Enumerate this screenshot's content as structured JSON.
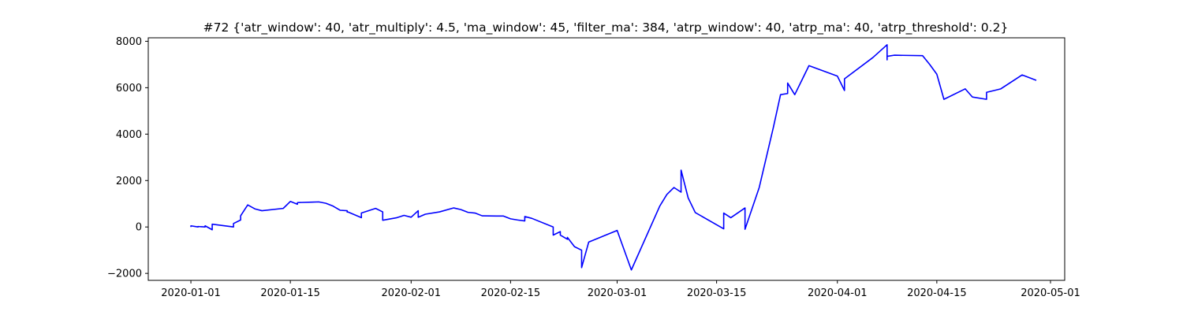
{
  "chart_data": {
    "type": "line",
    "title": "#72 {'atr_window': 40, 'atr_multiply': 4.5, 'ma_window': 45, 'filter_ma': 384, 'atrp_window': 40, 'atrp_ma': 40, 'atrp_threshold': 0.2}",
    "xlabel": "",
    "ylabel": "",
    "xlim": [
      "2019-12-26",
      "2020-05-03"
    ],
    "ylim": [
      -2300,
      8150
    ],
    "x_ticks": [
      "2020-01-01",
      "2020-01-15",
      "2020-02-01",
      "2020-02-15",
      "2020-03-01",
      "2020-03-15",
      "2020-04-01",
      "2020-04-15",
      "2020-05-01"
    ],
    "y_ticks": [
      -2000,
      0,
      2000,
      4000,
      6000,
      8000
    ],
    "grid": false,
    "legend": "none",
    "series": [
      {
        "color": "#0000ff",
        "points": [
          [
            "2020-01-01",
            0
          ],
          [
            "2020-01-01",
            50
          ],
          [
            "2020-01-02",
            0
          ],
          [
            "2020-01-02",
            20
          ],
          [
            "2020-01-03",
            0
          ],
          [
            "2020-01-03",
            50
          ],
          [
            "2020-01-04",
            -120
          ],
          [
            "2020-01-04",
            120
          ],
          [
            "2020-01-07",
            0
          ],
          [
            "2020-01-07",
            150
          ],
          [
            "2020-01-08",
            300
          ],
          [
            "2020-01-08",
            480
          ],
          [
            "2020-01-09",
            950
          ],
          [
            "2020-01-10",
            780
          ],
          [
            "2020-01-11",
            700
          ],
          [
            "2020-01-14",
            800
          ],
          [
            "2020-01-15",
            1100
          ],
          [
            "2020-01-16",
            980
          ],
          [
            "2020-01-16",
            1050
          ],
          [
            "2020-01-18",
            1070
          ],
          [
            "2020-01-19",
            1080
          ],
          [
            "2020-01-20",
            1020
          ],
          [
            "2020-01-21",
            900
          ],
          [
            "2020-01-22",
            720
          ],
          [
            "2020-01-23",
            700
          ],
          [
            "2020-01-23",
            640
          ],
          [
            "2020-01-23",
            660
          ],
          [
            "2020-01-25",
            400
          ],
          [
            "2020-01-25",
            600
          ],
          [
            "2020-01-27",
            800
          ],
          [
            "2020-01-28",
            650
          ],
          [
            "2020-01-28",
            290
          ],
          [
            "2020-01-30",
            400
          ],
          [
            "2020-01-31",
            500
          ],
          [
            "2020-02-01",
            420
          ],
          [
            "2020-02-02",
            700
          ],
          [
            "2020-02-02",
            420
          ],
          [
            "2020-02-03",
            550
          ],
          [
            "2020-02-05",
            650
          ],
          [
            "2020-02-07",
            820
          ],
          [
            "2020-02-08",
            750
          ],
          [
            "2020-02-09",
            630
          ],
          [
            "2020-02-10",
            600
          ],
          [
            "2020-02-11",
            480
          ],
          [
            "2020-02-13",
            470
          ],
          [
            "2020-02-14",
            470
          ],
          [
            "2020-02-15",
            350
          ],
          [
            "2020-02-16",
            300
          ],
          [
            "2020-02-17",
            260
          ],
          [
            "2020-02-17",
            450
          ],
          [
            "2020-02-18",
            370
          ],
          [
            "2020-02-21",
            0
          ],
          [
            "2020-02-21",
            -350
          ],
          [
            "2020-02-22",
            -200
          ],
          [
            "2020-02-22",
            -350
          ],
          [
            "2020-02-23",
            -530
          ],
          [
            "2020-02-23",
            -450
          ],
          [
            "2020-02-24",
            -850
          ],
          [
            "2020-02-25",
            -1000
          ],
          [
            "2020-02-25",
            -1750
          ],
          [
            "2020-02-26",
            -650
          ],
          [
            "2020-03-01",
            -150
          ],
          [
            "2020-03-03",
            -1850
          ],
          [
            "2020-03-07",
            900
          ],
          [
            "2020-03-08",
            1400
          ],
          [
            "2020-03-09",
            1700
          ],
          [
            "2020-03-10",
            1500
          ],
          [
            "2020-03-10",
            2450
          ],
          [
            "2020-03-11",
            1250
          ],
          [
            "2020-03-12",
            620
          ],
          [
            "2020-03-16",
            -80
          ],
          [
            "2020-03-16",
            600
          ],
          [
            "2020-03-17",
            400
          ],
          [
            "2020-03-19",
            820
          ],
          [
            "2020-03-19",
            -100
          ],
          [
            "2020-03-21",
            1700
          ],
          [
            "2020-03-23",
            4300
          ],
          [
            "2020-03-24",
            5700
          ],
          [
            "2020-03-25",
            5750
          ],
          [
            "2020-03-25",
            6200
          ],
          [
            "2020-03-26",
            5700
          ],
          [
            "2020-03-28",
            6950
          ],
          [
            "2020-04-01",
            6500
          ],
          [
            "2020-04-02",
            5880
          ],
          [
            "2020-04-02",
            6380
          ],
          [
            "2020-04-06",
            7300
          ],
          [
            "2020-04-08",
            7850
          ],
          [
            "2020-04-08",
            7200
          ],
          [
            "2020-04-08",
            7350
          ],
          [
            "2020-04-09",
            7400
          ],
          [
            "2020-04-13",
            7380
          ],
          [
            "2020-04-14",
            7000
          ],
          [
            "2020-04-15",
            6580
          ],
          [
            "2020-04-16",
            5500
          ],
          [
            "2020-04-19",
            5950
          ],
          [
            "2020-04-20",
            5600
          ],
          [
            "2020-04-22",
            5500
          ],
          [
            "2020-04-22",
            5800
          ],
          [
            "2020-04-24",
            5950
          ],
          [
            "2020-04-27",
            6550
          ],
          [
            "2020-04-29",
            6320
          ]
        ]
      }
    ]
  }
}
